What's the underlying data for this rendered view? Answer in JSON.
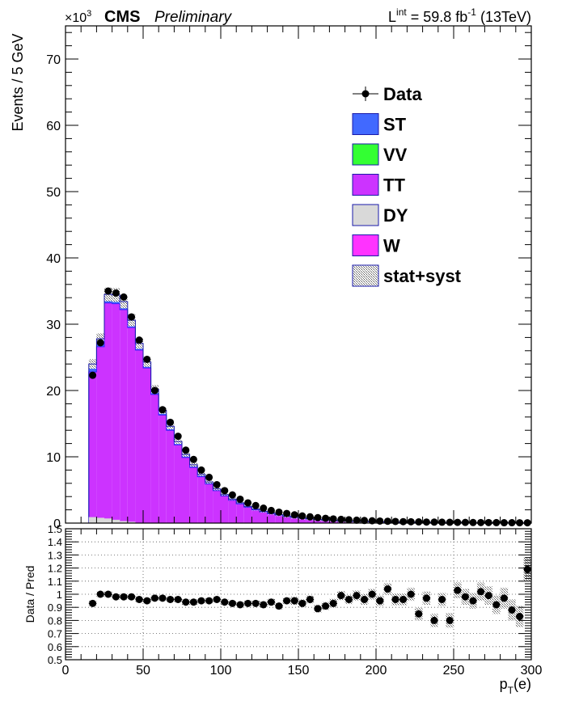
{
  "header": {
    "exponent": "×10",
    "exponent_power": "3",
    "experiment": "CMS",
    "status": "Preliminary",
    "lumi_prefix": "L",
    "lumi_sup": "int",
    "lumi_value": " = 59.8 fb",
    "lumi_unit_sup": "-1",
    "lumi_energy": " (13TeV)"
  },
  "chart_data": [
    {
      "type": "bar",
      "stacked": true,
      "ylabel": "Events / 5 GeV",
      "y_multiplier": 1000,
      "ylim": [
        0,
        75
      ],
      "xlim": [
        0,
        300
      ],
      "y_ticks": [
        0,
        10,
        20,
        30,
        40,
        50,
        60,
        70
      ],
      "bin_edges_start": 15,
      "bin_width": 5,
      "legend_position": "top-right",
      "legend": [
        {
          "label": "Data",
          "kind": "marker",
          "color": "#000000"
        },
        {
          "label": "ST",
          "kind": "fill",
          "color": "#4169ff"
        },
        {
          "label": "VV",
          "kind": "fill",
          "color": "#33ff33"
        },
        {
          "label": "TT",
          "kind": "fill",
          "color": "#cc33ff"
        },
        {
          "label": "DY",
          "kind": "fill",
          "color": "#d9d9d9"
        },
        {
          "label": "W",
          "kind": "fill",
          "color": "#ff33ff"
        },
        {
          "label": "stat+syst",
          "kind": "hatch",
          "color": "#888888"
        }
      ],
      "series": [
        {
          "name": "TT",
          "color": "#cc33ff",
          "values": [
            22.8,
            26.6,
            33.2,
            33.1,
            32.2,
            29.5,
            26.1,
            23.4,
            19.4,
            16.3,
            14.0,
            11.8,
            9.9,
            8.4,
            7.0,
            5.9,
            4.9,
            4.1,
            3.45,
            2.9,
            2.4,
            2.0,
            1.7,
            1.42,
            1.2,
            1.0,
            0.84,
            0.72,
            0.62,
            0.53,
            0.45,
            0.39,
            0.34,
            0.29,
            0.26,
            0.23,
            0.2,
            0.18,
            0.16,
            0.14,
            0.12,
            0.11,
            0.1,
            0.09,
            0.08,
            0.07,
            0.06,
            0.06,
            0.05,
            0.05,
            0.04,
            0.04,
            0.04,
            0.03,
            0.03,
            0.03,
            0.03
          ]
        },
        {
          "name": "ST",
          "color": "#4169ff",
          "values": [
            1.2,
            1.2,
            1.3,
            1.3,
            1.2,
            1.1,
            1.0,
            0.9,
            0.8,
            0.7,
            0.6,
            0.5,
            0.45,
            0.4,
            0.35,
            0.3,
            0.25,
            0.2,
            0.18,
            0.15,
            0.12,
            0.1,
            0.09,
            0.08,
            0.07,
            0.06,
            0.05,
            0.04,
            0.04,
            0.03,
            0.03,
            0.03,
            0.02,
            0.02,
            0.02,
            0.02,
            0.02,
            0.02,
            0.01,
            0.01,
            0.01,
            0.01,
            0.01,
            0.01,
            0.01,
            0.01,
            0.01,
            0.01,
            0.01,
            0.01,
            0.01,
            0.01,
            0.01,
            0.01,
            0.01,
            0.01,
            0.01
          ]
        }
      ],
      "data_points": [
        22.3,
        27.2,
        35.0,
        34.7,
        34.1,
        31.1,
        27.6,
        24.7,
        20.0,
        17.1,
        15.2,
        13.1,
        11.0,
        9.6,
        8.0,
        6.9,
        5.8,
        4.9,
        4.25,
        3.6,
        3.05,
        2.65,
        2.25,
        1.9,
        1.65,
        1.45,
        1.25,
        1.08,
        0.94,
        0.82,
        0.72,
        0.63,
        0.56,
        0.5,
        0.44,
        0.39,
        0.35,
        0.31,
        0.28,
        0.25,
        0.22,
        0.2,
        0.18,
        0.16,
        0.15,
        0.13,
        0.12,
        0.11,
        0.1,
        0.09,
        0.08,
        0.08,
        0.07,
        0.06,
        0.06,
        0.05,
        0.05
      ]
    },
    {
      "type": "scatter",
      "ylabel": "Data / Pred",
      "xlabel": "p",
      "xlabel_sub": "T",
      "xlabel_suffix": "(e)",
      "ylim": [
        0.5,
        1.5
      ],
      "xlim": [
        0,
        300
      ],
      "y_ticks": [
        0.5,
        0.6,
        0.7,
        0.8,
        0.9,
        1,
        1.1,
        1.2,
        1.3,
        1.4,
        1.5
      ],
      "x_ticks": [
        0,
        50,
        100,
        150,
        200,
        250,
        300
      ],
      "grid": true,
      "x": [
        17.5,
        22.5,
        27.5,
        32.5,
        37.5,
        42.5,
        47.5,
        52.5,
        57.5,
        62.5,
        67.5,
        72.5,
        77.5,
        82.5,
        87.5,
        92.5,
        97.5,
        102.5,
        107.5,
        112.5,
        117.5,
        122.5,
        127.5,
        132.5,
        137.5,
        142.5,
        147.5,
        152.5,
        157.5,
        162.5,
        167.5,
        172.5,
        177.5,
        182.5,
        187.5,
        192.5,
        197.5,
        202.5,
        207.5,
        212.5,
        217.5,
        222.5,
        227.5,
        232.5,
        237.5,
        242.5,
        247.5,
        252.5,
        257.5,
        262.5,
        267.5,
        272.5,
        277.5,
        282.5,
        287.5,
        292.5,
        297.5
      ],
      "ratio": [
        0.93,
        1.0,
        1.0,
        0.98,
        0.98,
        0.98,
        0.96,
        0.95,
        0.97,
        0.97,
        0.96,
        0.96,
        0.94,
        0.94,
        0.95,
        0.95,
        0.96,
        0.94,
        0.93,
        0.92,
        0.93,
        0.93,
        0.92,
        0.94,
        0.91,
        0.95,
        0.95,
        0.93,
        0.96,
        0.89,
        0.91,
        0.93,
        0.99,
        0.96,
        0.99,
        0.96,
        1.0,
        0.95,
        1.04,
        0.96,
        0.96,
        1.0,
        0.85,
        0.97,
        0.8,
        0.96,
        0.8,
        1.03,
        0.98,
        0.95,
        1.02,
        0.99,
        0.92,
        0.97,
        0.88,
        0.83,
        1.19
      ],
      "band_halfwidth": [
        0.02,
        0.02,
        0.02,
        0.02,
        0.02,
        0.02,
        0.02,
        0.02,
        0.02,
        0.02,
        0.02,
        0.02,
        0.02,
        0.02,
        0.02,
        0.02,
        0.02,
        0.02,
        0.02,
        0.02,
        0.02,
        0.02,
        0.025,
        0.025,
        0.025,
        0.025,
        0.03,
        0.03,
        0.03,
        0.03,
        0.03,
        0.035,
        0.035,
        0.035,
        0.04,
        0.04,
        0.04,
        0.04,
        0.045,
        0.045,
        0.045,
        0.05,
        0.05,
        0.05,
        0.05,
        0.05,
        0.055,
        0.06,
        0.06,
        0.06,
        0.07,
        0.07,
        0.07,
        0.08,
        0.08,
        0.08,
        0.09
      ]
    }
  ]
}
